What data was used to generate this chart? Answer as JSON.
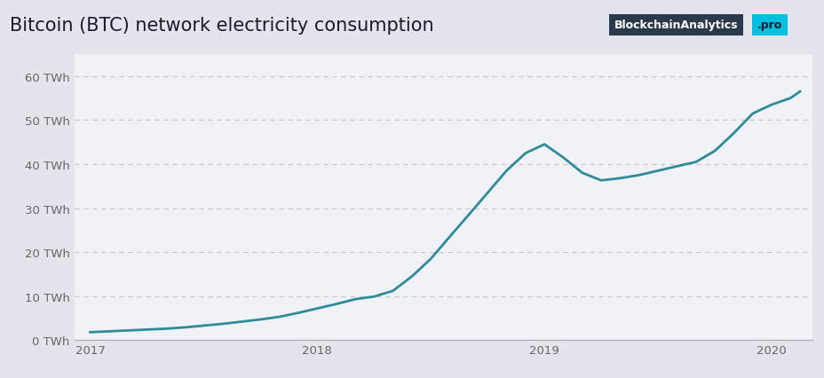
{
  "title": "Bitcoin (BTC) network electricity consumption",
  "title_fontsize": 15,
  "header_color": "#e2e5ec",
  "plot_background_color": "#f0f2f7",
  "line_color": "#2e8b9a",
  "line_width": 2.0,
  "ylim": [
    0,
    65
  ],
  "yticks": [
    0,
    10,
    20,
    30,
    40,
    50,
    60
  ],
  "ytick_labels": [
    "0 TWh",
    "10 TWh",
    "20 TWh",
    "30 TWh",
    "40 TWh",
    "50 TWh",
    "60 TWh"
  ],
  "grid_color": "#c5c8d0",
  "grid_style": "--",
  "watermark_text1": "BlockchainAnalytics",
  "watermark_text2": ".pro",
  "watermark_bg1": "#2b3a4a",
  "watermark_bg2": "#00c0e0",
  "x_values": [
    2017.0,
    2017.083,
    2017.167,
    2017.25,
    2017.333,
    2017.417,
    2017.5,
    2017.583,
    2017.667,
    2017.75,
    2017.833,
    2017.917,
    2018.0,
    2018.083,
    2018.167,
    2018.25,
    2018.333,
    2018.417,
    2018.5,
    2018.583,
    2018.667,
    2018.75,
    2018.833,
    2018.917,
    2019.0,
    2019.083,
    2019.167,
    2019.25,
    2019.333,
    2019.417,
    2019.5,
    2019.583,
    2019.667,
    2019.75,
    2019.833,
    2019.917,
    2020.0,
    2020.083,
    2020.125
  ],
  "y_values": [
    1.8,
    2.0,
    2.2,
    2.4,
    2.6,
    2.9,
    3.3,
    3.7,
    4.2,
    4.7,
    5.3,
    6.2,
    7.2,
    8.2,
    9.3,
    9.9,
    11.2,
    14.5,
    18.5,
    23.5,
    28.5,
    33.5,
    38.5,
    42.5,
    44.5,
    41.5,
    38.0,
    36.3,
    36.8,
    37.5,
    38.5,
    39.5,
    40.5,
    43.0,
    47.0,
    51.5,
    53.5,
    55.0,
    56.5
  ],
  "xticks": [
    2017,
    2018,
    2019,
    2020
  ],
  "xtick_labels": [
    "2017",
    "2018",
    "2019",
    "2020"
  ],
  "xlim": [
    2016.93,
    2020.18
  ]
}
